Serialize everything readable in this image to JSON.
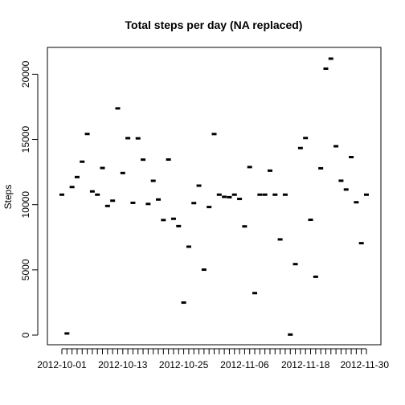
{
  "chart_data": {
    "type": "scatter",
    "title": "Total steps per day (NA replaced)",
    "xlabel": "",
    "ylabel": "Steps",
    "x": [
      "2012-10-01",
      "2012-10-02",
      "2012-10-03",
      "2012-10-04",
      "2012-10-05",
      "2012-10-06",
      "2012-10-07",
      "2012-10-08",
      "2012-10-09",
      "2012-10-10",
      "2012-10-11",
      "2012-10-12",
      "2012-10-13",
      "2012-10-14",
      "2012-10-15",
      "2012-10-16",
      "2012-10-17",
      "2012-10-18",
      "2012-10-19",
      "2012-10-20",
      "2012-10-21",
      "2012-10-22",
      "2012-10-23",
      "2012-10-24",
      "2012-10-25",
      "2012-10-26",
      "2012-10-27",
      "2012-10-28",
      "2012-10-29",
      "2012-10-30",
      "2012-10-31",
      "2012-11-01",
      "2012-11-02",
      "2012-11-03",
      "2012-11-04",
      "2012-11-05",
      "2012-11-06",
      "2012-11-07",
      "2012-11-08",
      "2012-11-09",
      "2012-11-10",
      "2012-11-11",
      "2012-11-12",
      "2012-11-13",
      "2012-11-14",
      "2012-11-15",
      "2012-11-16",
      "2012-11-17",
      "2012-11-18",
      "2012-11-19",
      "2012-11-20",
      "2012-11-21",
      "2012-11-22",
      "2012-11-23",
      "2012-11-24",
      "2012-11-25",
      "2012-11-26",
      "2012-11-27",
      "2012-11-28",
      "2012-11-29",
      "2012-11-30"
    ],
    "values": [
      10766,
      126,
      11352,
      12116,
      13294,
      15420,
      11015,
      10766,
      12811,
      9900,
      10304,
      17382,
      12426,
      15098,
      10139,
      15084,
      13452,
      10056,
      11829,
      10395,
      8821,
      13460,
      8918,
      8355,
      2492,
      6778,
      10119,
      11458,
      5018,
      9819,
      15414,
      10766,
      10600,
      10571,
      10766,
      10439,
      8334,
      12883,
      3219,
      10766,
      10766,
      12608,
      10765,
      7336,
      10766,
      41,
      5441,
      14339,
      15110,
      8841,
      4472,
      12787,
      20427,
      21194,
      14478,
      11834,
      11162,
      13646,
      10183,
      7047,
      10766
    ],
    "xticks": [
      "2012-10-01",
      "2012-10-13",
      "2012-10-25",
      "2012-11-06",
      "2012-11-18",
      "2012-11-30"
    ],
    "yticks": [
      0,
      5000,
      10000,
      15000,
      20000
    ],
    "ylim": [
      0,
      21194
    ],
    "grid": false,
    "legend": "none",
    "color": "#000000"
  }
}
